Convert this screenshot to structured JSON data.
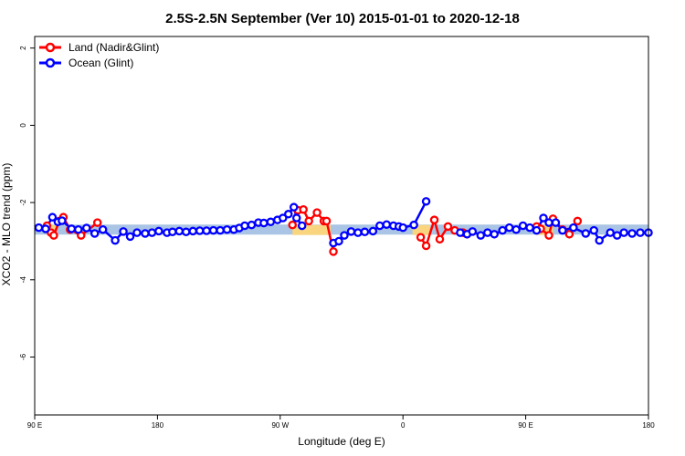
{
  "chart_data": {
    "type": "line",
    "title": "2.5S-2.5N September (Ver 10)   2015-01-01 to 2020-12-18",
    "xlabel": "Longitude (deg E)",
    "ylabel": "XCO2 - MLO trend (ppm)",
    "xlim": [
      90,
      540
    ],
    "ylim": [
      -7.5,
      2.3
    ],
    "x_ticks": [
      {
        "value": 90,
        "label": "90 E"
      },
      {
        "value": 180,
        "label": "180"
      },
      {
        "value": 270,
        "label": "90 W"
      },
      {
        "value": 360,
        "label": "0"
      },
      {
        "value": 450,
        "label": "90 E"
      },
      {
        "value": 540,
        "label": "180"
      }
    ],
    "y_ticks": [
      {
        "value": 2,
        "label": "2"
      },
      {
        "value": 0,
        "label": "0"
      },
      {
        "value": -2,
        "label": "-2"
      },
      {
        "value": -4,
        "label": "-4"
      },
      {
        "value": -6,
        "label": "-6"
      }
    ],
    "legend": {
      "position": "top-left",
      "entries": [
        {
          "label": "Land (Nadir&Glint)",
          "color": "#ff0000"
        },
        {
          "label": "Ocean (Glint)",
          "color": "#0000ff"
        }
      ]
    },
    "bands": [
      {
        "name": "Ocean band",
        "color": "#a9c4e4",
        "x": [
          90,
          540
        ],
        "y": [
          -2.57,
          -2.83
        ]
      },
      {
        "name": "Land band",
        "color": "#f8d57e",
        "segments": [
          [
            [
              99,
              106
            ],
            [
              -2.58,
              -2.84
            ]
          ],
          [
            [
              279,
              307
            ],
            [
              -2.58,
              -2.84
            ]
          ],
          [
            [
              367,
              380
            ],
            [
              -2.58,
              -2.84
            ]
          ],
          [
            [
              458,
              470
            ],
            [
              -2.58,
              -2.84
            ]
          ]
        ]
      }
    ],
    "series": [
      {
        "name": "Land (Nadir&Glint)",
        "color": "#ff0000",
        "segments": [
          {
            "x": [
              99,
              102,
              104,
              108,
              111,
              116,
              124,
              136
            ],
            "y": [
              -2.6,
              -2.78,
              -2.85,
              -2.48,
              -2.38,
              -2.7,
              -2.85,
              -2.52
            ]
          },
          {
            "x": [
              279,
              283,
              287,
              291,
              297,
              302
            ],
            "y": [
              -2.58,
              -2.2,
              -2.18,
              -2.48,
              -2.26,
              -2.48
            ]
          },
          {
            "x": [
              304,
              309
            ],
            "y": [
              -2.48,
              -3.27
            ]
          },
          {
            "x": [
              373,
              377,
              383,
              387,
              393,
              398,
              404,
              407
            ],
            "y": [
              -2.9,
              -3.12,
              -2.45,
              -2.95,
              -2.62,
              -2.72,
              -2.78,
              -2.82
            ]
          },
          {
            "x": [
              458,
              461,
              467,
              470,
              477,
              482,
              488
            ],
            "y": [
              -2.62,
              -2.68,
              -2.85,
              -2.42,
              -2.7,
              -2.82,
              -2.48
            ]
          }
        ]
      },
      {
        "name": "Ocean (Glint)",
        "color": "#0000ff",
        "segments": [
          {
            "x": [
              93,
              98,
              103,
              107,
              110,
              117,
              122,
              128,
              134,
              140,
              149,
              155,
              160,
              165,
              171,
              176,
              181,
              187,
              191,
              196,
              201,
              206,
              211,
              216,
              221,
              226,
              231,
              236,
              240,
              244,
              249,
              254,
              258,
              263,
              268,
              272,
              276,
              280,
              282,
              286
            ],
            "y": [
              -2.65,
              -2.68,
              -2.38,
              -2.5,
              -2.47,
              -2.68,
              -2.7,
              -2.66,
              -2.8,
              -2.7,
              -2.98,
              -2.75,
              -2.88,
              -2.78,
              -2.8,
              -2.78,
              -2.74,
              -2.78,
              -2.76,
              -2.74,
              -2.76,
              -2.74,
              -2.73,
              -2.73,
              -2.72,
              -2.72,
              -2.7,
              -2.7,
              -2.66,
              -2.6,
              -2.58,
              -2.52,
              -2.53,
              -2.5,
              -2.45,
              -2.4,
              -2.3,
              -2.12,
              -2.4,
              -2.6
            ]
          },
          {
            "x": [
              309,
              313,
              317,
              322,
              327,
              332,
              338,
              343,
              348,
              353,
              357,
              360,
              368,
              377
            ],
            "y": [
              -3.05,
              -3.0,
              -2.85,
              -2.75,
              -2.78,
              -2.76,
              -2.74,
              -2.6,
              -2.57,
              -2.6,
              -2.62,
              -2.65,
              -2.58,
              -1.97
            ]
          },
          {
            "x": [
              402,
              407,
              411,
              417,
              422,
              427,
              433,
              438,
              443,
              448,
              453,
              458,
              463,
              467,
              472,
              477,
              485,
              494,
              500,
              504,
              512,
              517,
              522,
              528,
              534,
              540
            ],
            "y": [
              -2.78,
              -2.82,
              -2.75,
              -2.85,
              -2.78,
              -2.82,
              -2.72,
              -2.65,
              -2.7,
              -2.6,
              -2.65,
              -2.72,
              -2.4,
              -2.52,
              -2.52,
              -2.72,
              -2.65,
              -2.8,
              -2.72,
              -2.98,
              -2.78,
              -2.85,
              -2.78,
              -2.8,
              -2.78,
              -2.78
            ]
          }
        ]
      }
    ]
  }
}
